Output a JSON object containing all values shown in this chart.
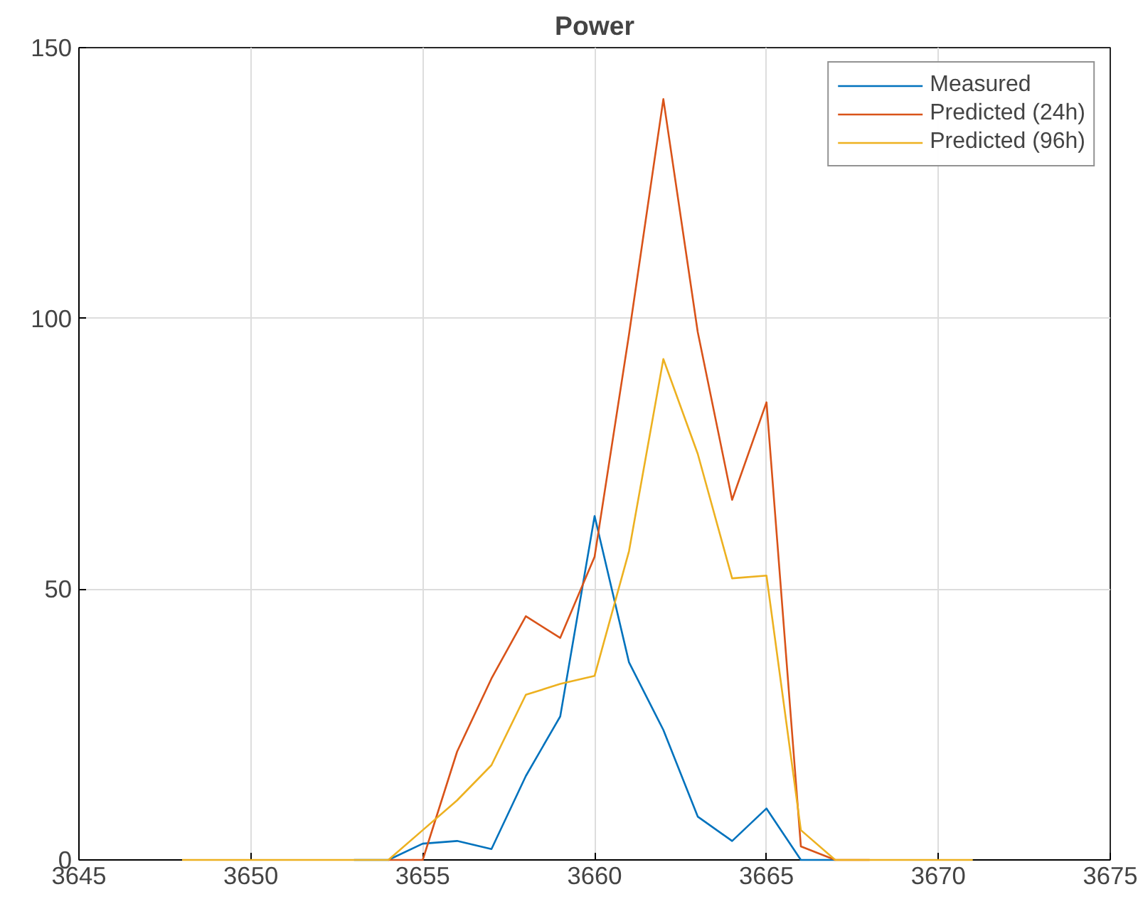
{
  "chart_data": {
    "type": "line",
    "title": "Power",
    "x": [
      3648,
      3649,
      3650,
      3651,
      3652,
      3653,
      3654,
      3655,
      3656,
      3657,
      3658,
      3659,
      3660,
      3661,
      3662,
      3663,
      3664,
      3665,
      3666,
      3667,
      3668,
      3669,
      3670,
      3671
    ],
    "series": [
      {
        "name": "Measured",
        "color": "#0072bd",
        "x": [
          3653,
          3654,
          3655,
          3656,
          3657,
          3658,
          3659,
          3660,
          3661,
          3662,
          3663,
          3664,
          3665,
          3666,
          3667
        ],
        "values": [
          0,
          0,
          3,
          3.5,
          2,
          15.5,
          26.5,
          63.5,
          36.5,
          24,
          8,
          3.5,
          9.5,
          0,
          0
        ]
      },
      {
        "name": "Predicted (24h)",
        "color": "#d95319",
        "x": [
          3654,
          3655,
          3656,
          3657,
          3658,
          3659,
          3660,
          3661,
          3662,
          3663,
          3664,
          3665,
          3666,
          3667,
          3668
        ],
        "values": [
          0,
          0,
          20,
          33.5,
          45,
          41,
          56,
          97,
          140.5,
          97.5,
          66.5,
          84.5,
          2.5,
          0,
          0
        ]
      },
      {
        "name": "Predicted (96h)",
        "color": "#edb120",
        "values": [
          0,
          0,
          0,
          0,
          0,
          0,
          0,
          5.5,
          11,
          17.5,
          30.5,
          32.5,
          34,
          57,
          92.5,
          75,
          52,
          52.5,
          5.5,
          0,
          0,
          0,
          0,
          0
        ]
      }
    ],
    "xlim": [
      3645,
      3675
    ],
    "xticks": [
      3645,
      3650,
      3655,
      3660,
      3665,
      3670,
      3675
    ],
    "ylim": [
      0,
      150
    ],
    "yticks": [
      0,
      50,
      100,
      150
    ],
    "grid": true,
    "legend": "top right"
  }
}
